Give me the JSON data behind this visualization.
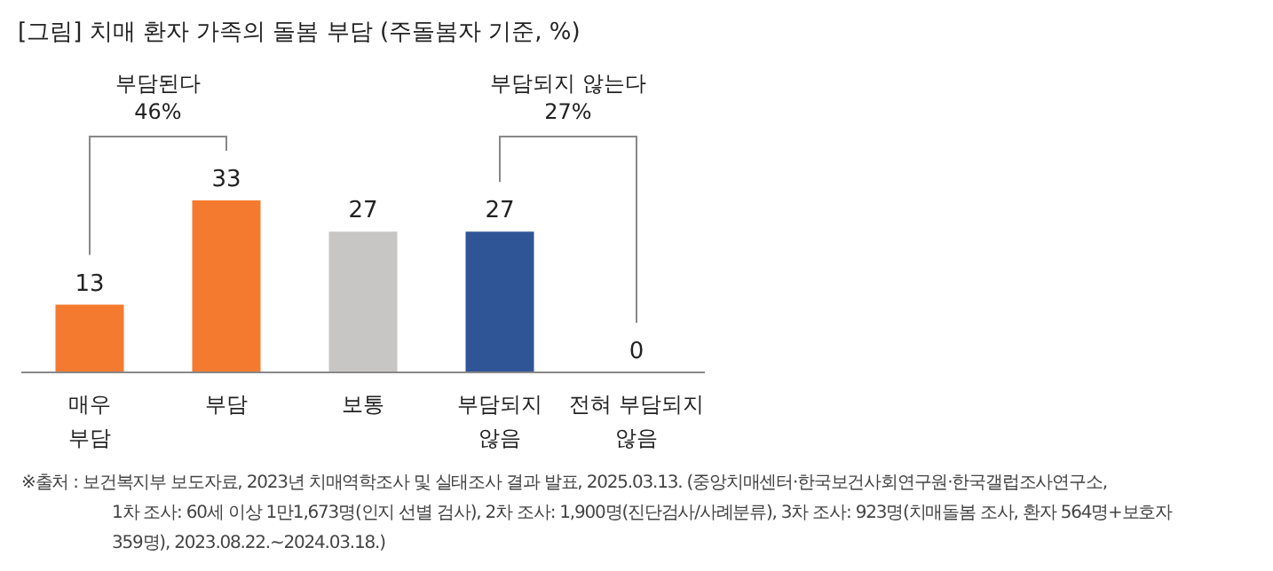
{
  "chart_data": {
    "type": "bar",
    "title": "[그림] 치매 환자 가족의 돌봄 부담 (주돌봄자 기준, %)",
    "categories": [
      "매우\n부담",
      "부담",
      "보통",
      "부담되지\n않음",
      "전혀 부담되지\n않음"
    ],
    "values": [
      13,
      33,
      27,
      27,
      0
    ],
    "colors": [
      "#f47a30",
      "#f47a30",
      "#c8c6c4",
      "#2f5597",
      "#2f5597"
    ],
    "data_labels": true,
    "annotations": [
      "부담된다\n46%",
      "부담되지 않는다\n27%",
      "※출처 : 보건복지부 보도자료, 2023년 치매역학조사 및 실태조사 결과 발표, 2025.03.13. (중앙치매센터·한국보건사회연구원·한국갤럽조사연구소,\n1차 조사: 60세 이상 1만1,673명(인지 선별 검사), 2차 조사: 1,900명(진단검사/사례분류), 3차 조사: 923명(치매돌봄 조사, 환자 564명+보호자\n359명), 2023.08.22.~2024.03.18.)"
    ]
  }
}
